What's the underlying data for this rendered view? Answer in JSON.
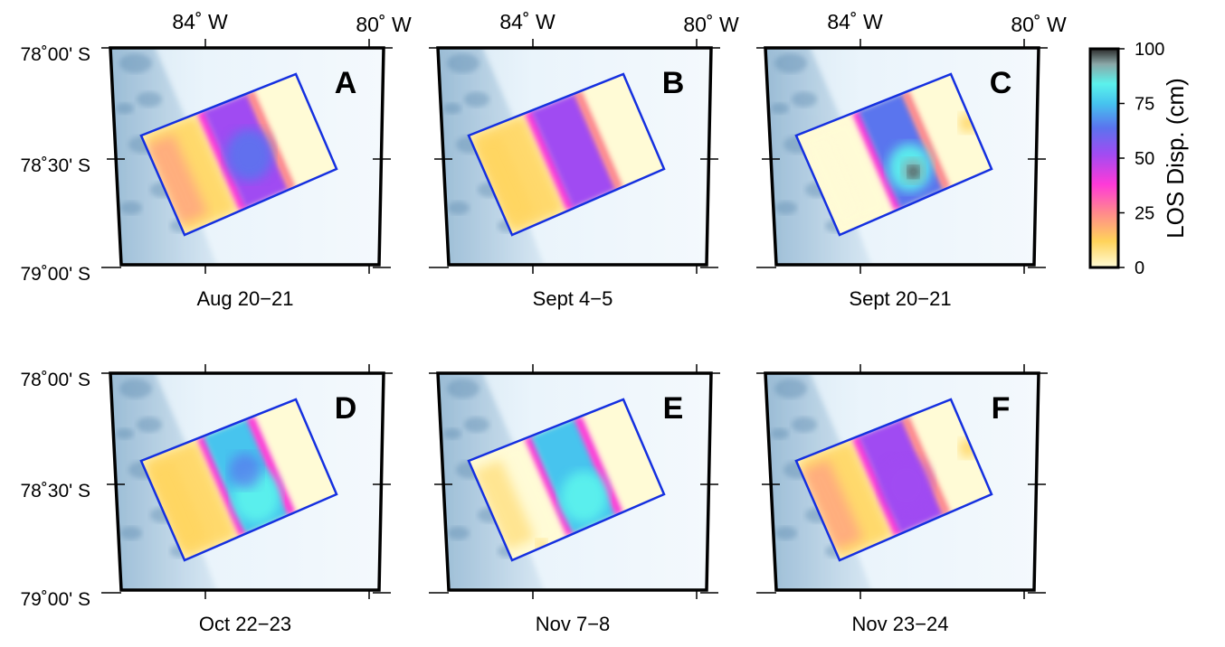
{
  "lon_labels": [
    "84˚ W",
    "80˚ W"
  ],
  "lat_labels": [
    "78˚00' S",
    "78˚30' S",
    "79˚00' S"
  ],
  "panels": [
    {
      "letter": "A",
      "date": "Aug 20−21",
      "pattern": "a"
    },
    {
      "letter": "B",
      "date": "Sept 4−5",
      "pattern": "b"
    },
    {
      "letter": "C",
      "date": "Sept 20−21",
      "pattern": "c"
    },
    {
      "letter": "D",
      "date": "Oct 22−23",
      "pattern": "d"
    },
    {
      "letter": "E",
      "date": "Nov 7−8",
      "pattern": "e"
    },
    {
      "letter": "F",
      "date": "Nov 23−24",
      "pattern": "f"
    }
  ],
  "colorbar": {
    "title": "LOS Disp. (cm)",
    "ticks": [
      "100",
      "75",
      "50",
      "25",
      "0"
    ],
    "stops": [
      {
        "value": 0,
        "color": "#fffbd6"
      },
      {
        "value": 12,
        "color": "#ffd35a"
      },
      {
        "value": 25,
        "color": "#ff8a8c"
      },
      {
        "value": 38,
        "color": "#ff3ad8"
      },
      {
        "value": 52,
        "color": "#a04cf2"
      },
      {
        "value": 64,
        "color": "#5a74ee"
      },
      {
        "value": 75,
        "color": "#46c4ee"
      },
      {
        "value": 84,
        "color": "#5bf2ec"
      },
      {
        "value": 93,
        "color": "#8aa8a8"
      },
      {
        "value": 100,
        "color": "#2b2b2b"
      }
    ]
  },
  "colors": {
    "track_outline": "#1530e0",
    "frame": "#000000",
    "background": "#eaf4fb",
    "relief": "#93bcd9"
  }
}
